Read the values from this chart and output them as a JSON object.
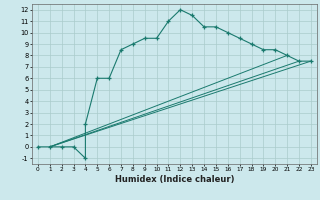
{
  "xlabel": "Humidex (Indice chaleur)",
  "bg_color": "#cce8ec",
  "grid_color": "#aacccc",
  "line_color": "#1a7a6e",
  "xlim": [
    -0.5,
    23.5
  ],
  "ylim": [
    -1.5,
    12.5
  ],
  "xticks": [
    0,
    1,
    2,
    3,
    4,
    5,
    6,
    7,
    8,
    9,
    10,
    11,
    12,
    13,
    14,
    15,
    16,
    17,
    18,
    19,
    20,
    21,
    22,
    23
  ],
  "yticks": [
    -1,
    0,
    1,
    2,
    3,
    4,
    5,
    6,
    7,
    8,
    9,
    10,
    11,
    12
  ],
  "curve1_x": [
    0,
    1,
    2,
    3,
    4,
    4,
    5,
    6,
    7,
    8,
    9,
    10,
    11,
    12,
    13,
    14,
    15,
    16,
    17,
    18,
    19,
    20,
    21,
    22,
    23
  ],
  "curve1_y": [
    0,
    0,
    0,
    0,
    -1,
    2,
    6,
    6,
    8.5,
    9,
    9.5,
    9.5,
    11,
    12,
    11.5,
    10.5,
    10.5,
    10,
    9.5,
    9,
    8.5,
    8.5,
    8,
    7.5,
    7.5
  ],
  "line2_x": [
    1,
    21
  ],
  "line2_y": [
    0,
    8
  ],
  "line3_x": [
    1,
    22
  ],
  "line3_y": [
    0,
    7.5
  ],
  "line4_x": [
    1,
    23
  ],
  "line4_y": [
    0,
    7.5
  ]
}
